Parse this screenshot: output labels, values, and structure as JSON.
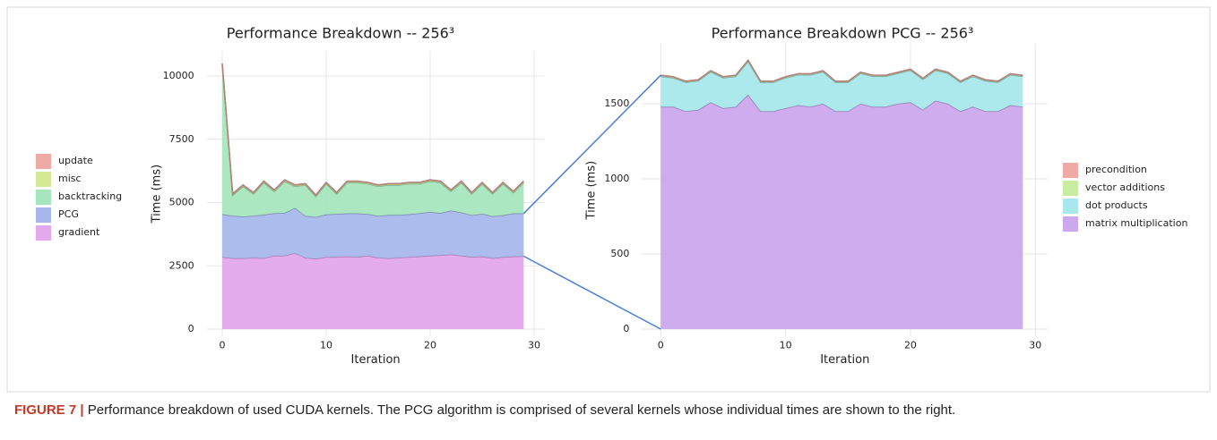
{
  "chart_data": [
    {
      "type": "area",
      "title": "Performance Breakdown -- 256³",
      "xlabel": "Iteration",
      "ylabel": "Time (ms)",
      "legend": "left",
      "x": [
        0,
        1,
        2,
        3,
        4,
        5,
        6,
        7,
        8,
        9,
        10,
        11,
        12,
        13,
        14,
        15,
        16,
        17,
        18,
        19,
        20,
        21,
        22,
        23,
        24,
        25,
        26,
        27,
        28,
        29
      ],
      "series": [
        {
          "name": "update",
          "color": "#f0aaa6",
          "values": [
            20,
            20,
            20,
            20,
            20,
            20,
            20,
            20,
            20,
            20,
            20,
            20,
            20,
            20,
            20,
            20,
            20,
            20,
            20,
            20,
            20,
            20,
            20,
            20,
            20,
            20,
            20,
            20,
            20,
            20
          ]
        },
        {
          "name": "misc",
          "color": "#d6e896",
          "values": [
            40,
            40,
            40,
            40,
            40,
            40,
            40,
            40,
            40,
            40,
            40,
            40,
            40,
            40,
            40,
            40,
            40,
            40,
            40,
            40,
            40,
            40,
            40,
            40,
            40,
            40,
            40,
            40,
            40,
            40
          ]
        },
        {
          "name": "backtracking",
          "color": "#a6e6be",
          "values": [
            5900,
            810,
            1190,
            860,
            1270,
            860,
            1250,
            850,
            1220,
            810,
            1210,
            790,
            1220,
            1220,
            1190,
            1170,
            1180,
            1180,
            1200,
            1160,
            1210,
            1200,
            760,
            1180,
            840,
            1180,
            880,
            1240,
            820,
            1220
          ]
        },
        {
          "name": "PCG",
          "color": "#a8b8ec",
          "values": [
            1690,
            1680,
            1650,
            1660,
            1720,
            1680,
            1690,
            1790,
            1650,
            1650,
            1680,
            1700,
            1700,
            1720,
            1650,
            1650,
            1710,
            1690,
            1690,
            1710,
            1730,
            1670,
            1730,
            1710,
            1650,
            1690,
            1660,
            1650,
            1700,
            1690
          ]
        },
        {
          "name": "gradient",
          "color": "#e4a8ec",
          "values": [
            2850,
            2800,
            2800,
            2820,
            2800,
            2900,
            2900,
            3000,
            2820,
            2780,
            2850,
            2850,
            2870,
            2850,
            2900,
            2820,
            2800,
            2820,
            2850,
            2870,
            2900,
            2920,
            2950,
            2900,
            2850,
            2870,
            2800,
            2850,
            2870,
            2880
          ]
        }
      ],
      "xlim": [
        -1.5,
        31
      ],
      "ylim": [
        -300,
        11000
      ],
      "xticks": [
        0,
        10,
        20,
        30
      ],
      "yticks": [
        0,
        2500,
        5000,
        7500,
        10000
      ],
      "grid": true
    },
    {
      "type": "area",
      "title": "Performance Breakdown PCG -- 256³",
      "xlabel": "Iteration",
      "ylabel": "Time (ms)",
      "legend": "right",
      "x": [
        0,
        1,
        2,
        3,
        4,
        5,
        6,
        7,
        8,
        9,
        10,
        11,
        12,
        13,
        14,
        15,
        16,
        17,
        18,
        19,
        20,
        21,
        22,
        23,
        24,
        25,
        26,
        27,
        28,
        29
      ],
      "series": [
        {
          "name": "precondition",
          "color": "#f0aaa6",
          "values": [
            3,
            3,
            3,
            3,
            3,
            3,
            3,
            3,
            3,
            3,
            3,
            3,
            3,
            3,
            3,
            3,
            3,
            3,
            3,
            3,
            3,
            3,
            3,
            3,
            3,
            3,
            3,
            3,
            3,
            3
          ]
        },
        {
          "name": "vector additions",
          "color": "#c8eca0",
          "values": [
            5,
            5,
            5,
            5,
            5,
            5,
            5,
            5,
            5,
            5,
            5,
            5,
            5,
            5,
            5,
            5,
            5,
            5,
            5,
            5,
            5,
            5,
            5,
            5,
            5,
            5,
            5,
            5,
            5,
            5
          ]
        },
        {
          "name": "dot products",
          "color": "#a8e8ec",
          "values": [
            202,
            192,
            192,
            192,
            202,
            202,
            202,
            222,
            192,
            192,
            202,
            202,
            212,
            212,
            192,
            192,
            202,
            202,
            202,
            202,
            212,
            202,
            202,
            202,
            192,
            202,
            202,
            192,
            202,
            202
          ]
        },
        {
          "name": "matrix multiplication",
          "color": "#cca8ec",
          "values": [
            1480,
            1480,
            1450,
            1460,
            1510,
            1470,
            1480,
            1560,
            1450,
            1450,
            1470,
            1490,
            1480,
            1500,
            1450,
            1450,
            1500,
            1480,
            1480,
            1500,
            1510,
            1460,
            1520,
            1500,
            1450,
            1480,
            1450,
            1450,
            1490,
            1480
          ]
        }
      ],
      "xlim": [
        -1.5,
        31
      ],
      "ylim": [
        -50,
        1900
      ],
      "xticks": [
        0,
        10,
        20,
        30
      ],
      "yticks": [
        0,
        500,
        1000,
        1500
      ],
      "grid": true
    }
  ],
  "caption": {
    "label": "FIGURE 7 |",
    "text": "Performance breakdown of used CUDA kernels. The PCG algorithm is comprised of several kernels whose individual times are shown to the right."
  }
}
